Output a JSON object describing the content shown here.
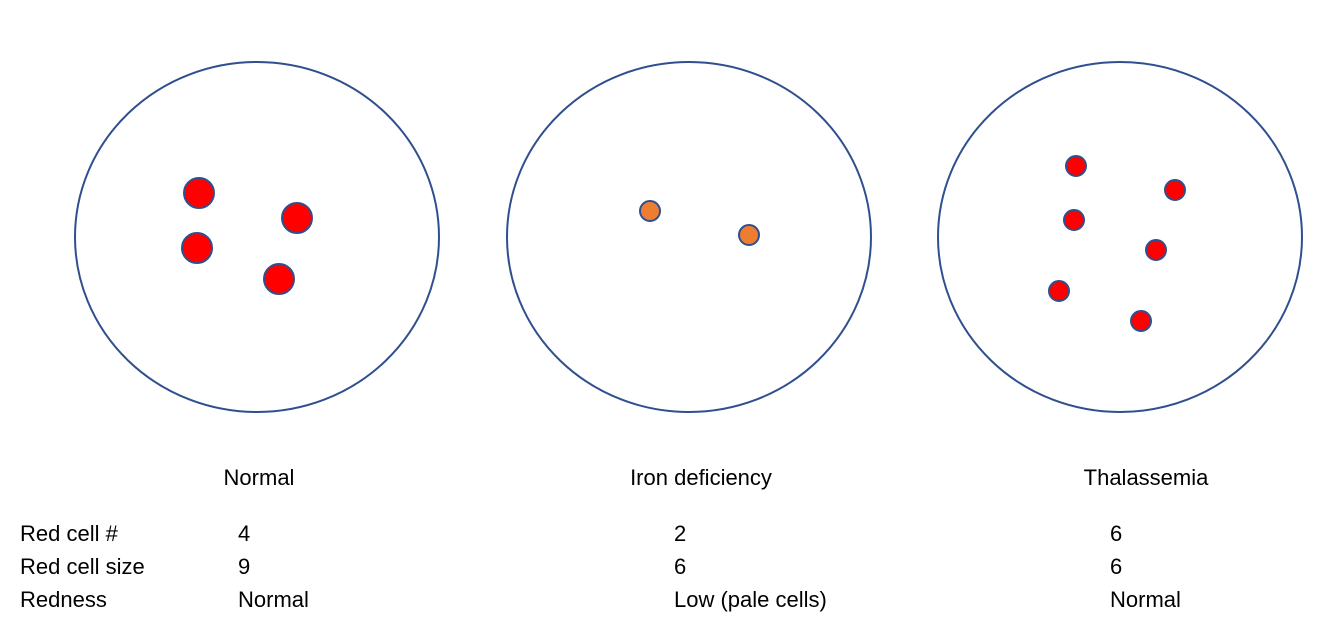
{
  "colors": {
    "outline": "#2f4f8f",
    "cell_red": "#ff0000",
    "cell_pale": "#ed7d31"
  },
  "panels": [
    {
      "title": "Normal",
      "cell_color": "#ff0000",
      "cell_count": 4
    },
    {
      "title": "Iron deficiency",
      "cell_color": "#ed7d31",
      "cell_count": 2
    },
    {
      "title": "Thalassemia",
      "cell_color": "#ff0000",
      "cell_count": 6
    }
  ],
  "table": {
    "rows": [
      {
        "label": "Red cell #",
        "values": [
          "4",
          "2",
          "6"
        ]
      },
      {
        "label": "Red cell size",
        "values": [
          "9",
          "6",
          "6"
        ]
      },
      {
        "label": "Redness",
        "values": [
          "Normal",
          "Low (pale cells)",
          "Normal"
        ]
      }
    ]
  }
}
